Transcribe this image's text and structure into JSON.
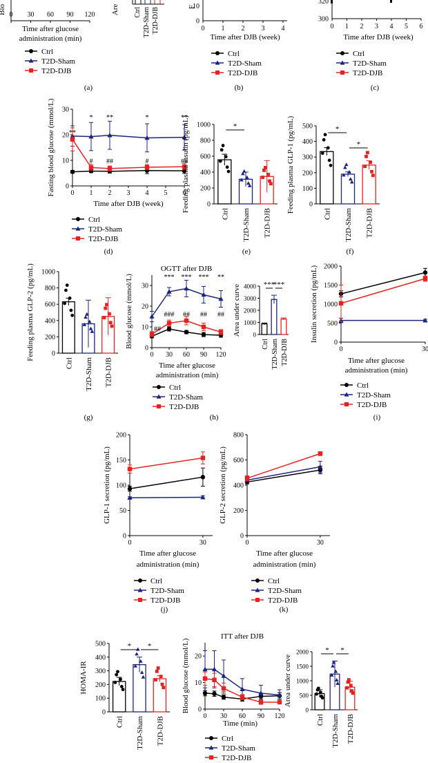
{
  "groups": [
    {
      "name": "Ctrl",
      "color": "#000000",
      "marker": "circle"
    },
    {
      "name": "T2D-Sham",
      "color": "#1a237e",
      "marker": "triangle"
    },
    {
      "name": "T2D-DJB",
      "color": "#e52222",
      "marker": "square"
    }
  ],
  "chart_data": [
    {
      "panel": "(a)",
      "type": "line",
      "xlabel": "Time after glucose administration (min)",
      "xticks": [
        0,
        30,
        60,
        90,
        120
      ]
    },
    {
      "panel": "(a)",
      "type": "bar",
      "ylabel": "Area under curve",
      "categories": [
        "Ctrl",
        "T2D-Sham",
        "T2D-DJB"
      ]
    },
    {
      "panel": "(b)",
      "type": "line",
      "xlabel": "Time after DJB (week)",
      "xticks": [
        0,
        1,
        2,
        3,
        4
      ],
      "yticks": [
        10,
        0
      ]
    },
    {
      "panel": "(c)",
      "type": "line",
      "xlabel": "Time after DJB (week)",
      "xticks": [
        0,
        1,
        2,
        3,
        4,
        5,
        6
      ],
      "yticks": [
        320,
        300
      ]
    },
    {
      "panel": "(d)",
      "type": "line",
      "ylabel": "Fasting blood glucose (mmol/L)",
      "xlabel": "Time after DJB (week)",
      "x": [
        0,
        1,
        2,
        4,
        6
      ],
      "ylim": [
        0,
        30
      ],
      "yticks": [
        0,
        10,
        20,
        30
      ],
      "xticks": [
        0,
        1,
        2,
        3,
        4,
        5,
        6
      ],
      "series": [
        {
          "name": "Ctrl",
          "values": [
            5.5,
            5.8,
            5.7,
            6.0,
            5.9
          ],
          "errors": [
            0.5,
            0.6,
            0.7,
            1.2,
            1.0
          ]
        },
        {
          "name": "T2D-Sham",
          "values": [
            19.5,
            19.3,
            19.8,
            18.8,
            19.0
          ],
          "errors": [
            4.0,
            5.5,
            5.5,
            5.5,
            5.0
          ]
        },
        {
          "name": "T2D-DJB",
          "values": [
            18.2,
            7.2,
            6.8,
            7.3,
            7.5
          ],
          "errors": [
            4.5,
            1.2,
            1.0,
            1.0,
            1.2
          ]
        }
      ],
      "annotations": [
        {
          "x": 0,
          "text": "**"
        },
        {
          "x": 1,
          "text": "*"
        },
        {
          "x": 2,
          "text": "**"
        },
        {
          "x": 4,
          "text": "*"
        },
        {
          "x": 6,
          "text": "**"
        },
        {
          "x": 1,
          "text": "#"
        },
        {
          "x": 2,
          "text": "##"
        },
        {
          "x": 4,
          "text": "#"
        },
        {
          "x": 6,
          "text": "##"
        }
      ]
    },
    {
      "panel": "(e)",
      "type": "bar",
      "ylabel": "Feeding plasma insulin (pg/mL)",
      "categories": [
        "Ctrl",
        "T2D-Sham",
        "T2D-DJB"
      ],
      "values": [
        555,
        310,
        345
      ],
      "errors": [
        70,
        90,
        200
      ],
      "ylim": [
        0,
        1000
      ],
      "yticks": [
        0,
        200,
        400,
        600,
        800,
        1000
      ],
      "significance": [
        {
          "from": "Ctrl",
          "to": "T2D-Sham",
          "text": "*"
        }
      ]
    },
    {
      "panel": "(f)",
      "type": "bar",
      "ylabel": "Feeding plasma GLP-1 (pg/mL)",
      "categories": [
        "Ctrl",
        "T2D-Sham",
        "T2D-DJB"
      ],
      "values": [
        335,
        190,
        248
      ],
      "errors": [
        25,
        15,
        28
      ],
      "ylim": [
        0,
        500
      ],
      "yticks": [
        0,
        100,
        200,
        300,
        400,
        500
      ],
      "significance": [
        {
          "from": "Ctrl",
          "to": "T2D-Sham",
          "text": "*"
        },
        {
          "from": "T2D-Sham",
          "to": "T2D-DJB",
          "text": "*"
        }
      ]
    },
    {
      "panel": "(g)",
      "type": "bar",
      "ylabel": "Feeding plasma GLP-2 (pg/mL)",
      "categories": [
        "Ctrl",
        "T2D-Sham",
        "T2D-DJB"
      ],
      "values": [
        630,
        360,
        450
      ],
      "errors": [
        45,
        290,
        230
      ],
      "ylim": [
        0,
        1000
      ],
      "yticks": [
        0,
        200,
        400,
        600,
        800,
        1000
      ]
    },
    {
      "panel": "(h)",
      "type": "line",
      "title": "OGTT after DJB",
      "ylabel": "Blood glucose (mmol/L)",
      "xlabel": "Time after glucose administration (min)",
      "x": [
        0,
        30,
        60,
        90,
        120
      ],
      "ylim": [
        0,
        35
      ],
      "yticks": [
        0,
        10,
        20,
        30
      ],
      "xticks": [
        0,
        30,
        60,
        90,
        120
      ],
      "series": [
        {
          "name": "Ctrl",
          "values": [
            5.5,
            9.0,
            7.5,
            6.3,
            6.0
          ],
          "errors": [
            0.8,
            1.0,
            0.8,
            1.0,
            1.0
          ]
        },
        {
          "name": "T2D-Sham",
          "values": [
            15.0,
            27.0,
            28.5,
            25.5,
            23.5
          ],
          "errors": [
            2.5,
            2.0,
            4.0,
            4.0,
            4.0
          ]
        },
        {
          "name": "T2D-DJB",
          "values": [
            6.5,
            11.8,
            13.0,
            10.0,
            7.5
          ],
          "errors": [
            1.2,
            1.5,
            2.0,
            1.8,
            1.2
          ]
        }
      ],
      "annotations": [
        {
          "x": 30,
          "text": "***"
        },
        {
          "x": 60,
          "text": "***"
        },
        {
          "x": 90,
          "text": "***"
        },
        {
          "x": 120,
          "text": "**"
        },
        {
          "x": 0,
          "text": "##"
        },
        {
          "x": 30,
          "text": "###"
        },
        {
          "x": 60,
          "text": "##"
        },
        {
          "x": 90,
          "text": "##"
        },
        {
          "x": 120,
          "text": "##"
        }
      ]
    },
    {
      "panel": "(h)",
      "type": "bar",
      "ylabel": "Area under curve",
      "categories": [
        "Ctrl",
        "T2D-Sham",
        "T2D-DJB"
      ],
      "values": [
        880,
        2900,
        1280
      ],
      "errors": [
        70,
        350,
        90
      ],
      "ylim": [
        0,
        4000
      ],
      "yticks": [
        0,
        1000,
        2000,
        3000,
        4000
      ],
      "significance": [
        {
          "from": "Ctrl",
          "to": "T2D-Sham",
          "text": "***"
        },
        {
          "from": "T2D-Sham",
          "to": "T2D-DJB",
          "text": "***"
        }
      ]
    },
    {
      "panel": "(i)",
      "type": "line",
      "ylabel": "Insulin secretion (pg/mL)",
      "xlabel": "Time after glucose administration (min)",
      "x": [
        0,
        30
      ],
      "ylim": [
        0,
        2000
      ],
      "yticks": [
        0,
        500,
        1000,
        1500,
        2000
      ],
      "xticks": [
        0,
        30
      ],
      "series": [
        {
          "name": "Ctrl",
          "values": [
            1270,
            1830
          ],
          "errors": [
            80,
            110
          ]
        },
        {
          "name": "T2D-Sham",
          "values": [
            570,
            570
          ],
          "errors": [
            60,
            30
          ]
        },
        {
          "name": "T2D-DJB",
          "values": [
            1020,
            1670
          ],
          "errors": [
            480,
            70
          ]
        }
      ]
    },
    {
      "panel": "(j)",
      "type": "line",
      "ylabel": "GLP-1 secretion (pg/mL)",
      "xlabel": "Time after glucose administration (min)",
      "x": [
        0,
        30
      ],
      "ylim": [
        0,
        200
      ],
      "yticks": [
        0,
        50,
        100,
        150,
        200
      ],
      "xticks": [
        0,
        30
      ],
      "series": [
        {
          "name": "Ctrl",
          "values": [
            93,
            116
          ],
          "errors": [
            5,
            18
          ]
        },
        {
          "name": "T2D-Sham",
          "values": [
            75,
            76
          ],
          "errors": [
            2,
            3
          ]
        },
        {
          "name": "T2D-DJB",
          "values": [
            132,
            154
          ],
          "errors": [
            8,
            12
          ]
        }
      ]
    },
    {
      "panel": "(k)",
      "type": "line",
      "ylabel": "GLP-2 secretion (pg/mL)",
      "xlabel": "Time after glucose administration (min)",
      "x": [
        0,
        30
      ],
      "ylim": [
        0,
        800
      ],
      "yticks": [
        0,
        200,
        400,
        600,
        800
      ],
      "xticks": [
        0,
        30
      ],
      "series": [
        {
          "name": "Ctrl",
          "values": [
            425,
            520
          ],
          "errors": [
            15,
            30
          ]
        },
        {
          "name": "T2D-Sham",
          "values": [
            440,
            545
          ],
          "errors": [
            15,
            45
          ]
        },
        {
          "name": "T2D-DJB",
          "values": [
            455,
            650
          ],
          "errors": [
            20,
            15
          ]
        }
      ]
    },
    {
      "panel": "(l)",
      "type": "bar",
      "ylabel": "HOMA-IR",
      "categories": [
        "Ctrl",
        "T2D-Sham",
        "T2D-DJB"
      ],
      "values": [
        222,
        345,
        242
      ],
      "errors": [
        30,
        55,
        22
      ],
      "ylim": [
        0,
        500
      ],
      "yticks": [
        0,
        100,
        200,
        300,
        400,
        500
      ],
      "significance": [
        {
          "from": "Ctrl",
          "to": "T2D-Sham",
          "text": "*"
        },
        {
          "from": "T2D-Sham",
          "to": "T2D-DJB",
          "text": "*"
        }
      ]
    },
    {
      "panel": "(l)",
      "type": "line",
      "title": "ITT after DJB",
      "ylabel": "Blood glucose (mmol/L)",
      "xlabel": "Time (min)",
      "x": [
        0,
        15,
        30,
        60,
        90,
        120
      ],
      "ylim": [
        0,
        25
      ],
      "yticks": [
        0,
        10,
        20
      ],
      "xticks": [
        0,
        30,
        60,
        90,
        120
      ],
      "series": [
        {
          "name": "Ctrl",
          "values": [
            6.0,
            5.8,
            4.5,
            3.8,
            4.8,
            5.0
          ],
          "errors": [
            1.0,
            1.0,
            0.8,
            0.8,
            1.0,
            1.2
          ]
        },
        {
          "name": "T2D-Sham",
          "values": [
            15.0,
            15.0,
            12.5,
            7.5,
            6.0,
            5.3
          ],
          "errors": [
            7.0,
            7.0,
            6.0,
            4.0,
            3.0,
            2.0
          ]
        },
        {
          "name": "T2D-DJB",
          "values": [
            11.5,
            11.0,
            7.8,
            4.5,
            2.6,
            2.6
          ],
          "errors": [
            2.5,
            2.5,
            2.0,
            1.0,
            0.8,
            0.6
          ]
        }
      ]
    },
    {
      "panel": "(l)",
      "type": "bar",
      "ylabel": "Area under curve",
      "categories": [
        "Ctrl",
        "T2D-Sham",
        "T2D-DJB"
      ],
      "values": [
        560,
        1230,
        780
      ],
      "errors": [
        130,
        450,
        200
      ],
      "ylim": [
        0,
        2000
      ],
      "yticks": [
        0,
        500,
        1000,
        1500,
        2000
      ],
      "significance": [
        {
          "from": "Ctrl",
          "to": "T2D-Sham",
          "text": "*"
        },
        {
          "from": "T2D-Sham",
          "to": "T2D-DJB",
          "text": "*"
        }
      ]
    }
  ]
}
